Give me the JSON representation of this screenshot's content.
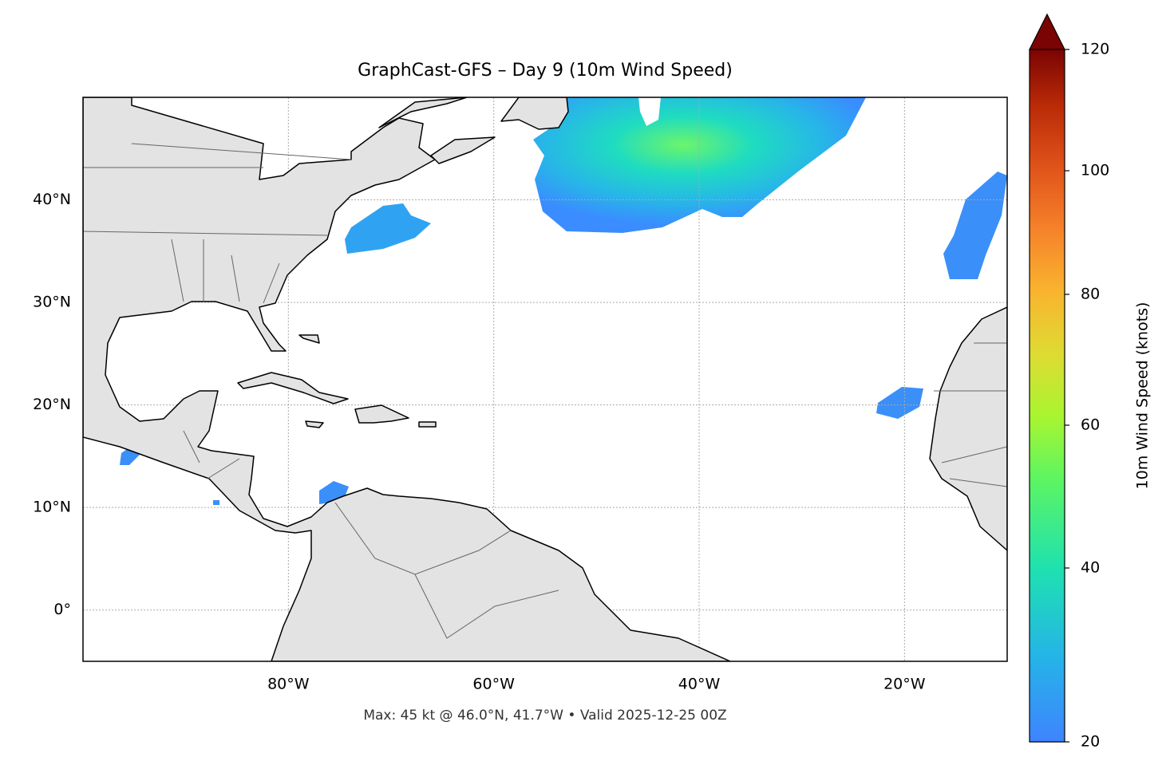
{
  "chart_data": {
    "type": "map",
    "title": "GraphCast-GFS – Day 9 (10m Wind Speed)",
    "xlim": [
      -100,
      -10
    ],
    "ylim": [
      -5,
      50
    ],
    "xticks": [
      {
        "value": -80,
        "label": "80°W"
      },
      {
        "value": -60,
        "label": "60°W"
      },
      {
        "value": -40,
        "label": "40°W"
      },
      {
        "value": -20,
        "label": "20°W"
      }
    ],
    "yticks": [
      {
        "value": 0,
        "label": "0°"
      },
      {
        "value": 10,
        "label": "10°N"
      },
      {
        "value": 20,
        "label": "20°N"
      },
      {
        "value": 30,
        "label": "30°N"
      },
      {
        "value": 40,
        "label": "40°N"
      }
    ],
    "grid": true,
    "footnote": "Max: 45 kt @ 46.0°N, 41.7°W • Valid 2025-12-25 00Z",
    "colorbar": {
      "label": "10m Wind Speed (knots)",
      "lim": [
        20,
        120
      ],
      "ticks": [
        20,
        40,
        60,
        80,
        100,
        120
      ],
      "extend": "max"
    }
  }
}
